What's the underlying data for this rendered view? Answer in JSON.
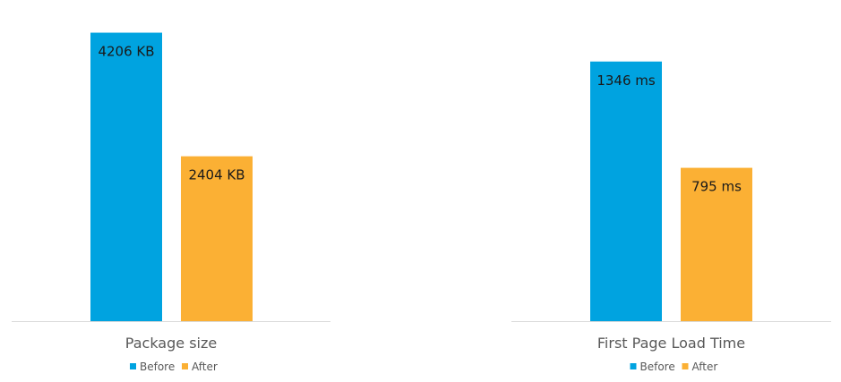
{
  "colors": {
    "before": "#00A3E0",
    "after": "#FBB034",
    "axis": "#d9d9d9"
  },
  "chart_data": [
    {
      "type": "bar",
      "title": "Package size",
      "categories": [
        "Before",
        "After"
      ],
      "values": [
        4206,
        2404
      ],
      "data_labels": [
        "4206 KB",
        "2404 KB"
      ],
      "unit": "KB",
      "ylim": [
        0,
        4500
      ],
      "grid": false,
      "legend": {
        "position": "bottom",
        "entries": [
          "Before",
          "After"
        ]
      }
    },
    {
      "type": "bar",
      "title": "First Page Load Time",
      "categories": [
        "Before",
        "After"
      ],
      "values": [
        1346,
        795
      ],
      "data_labels": [
        "1346 ms",
        "795 ms"
      ],
      "unit": "ms",
      "ylim": [
        0,
        1600
      ],
      "grid": false,
      "legend": {
        "position": "bottom",
        "entries": [
          "Before",
          "After"
        ]
      }
    }
  ]
}
